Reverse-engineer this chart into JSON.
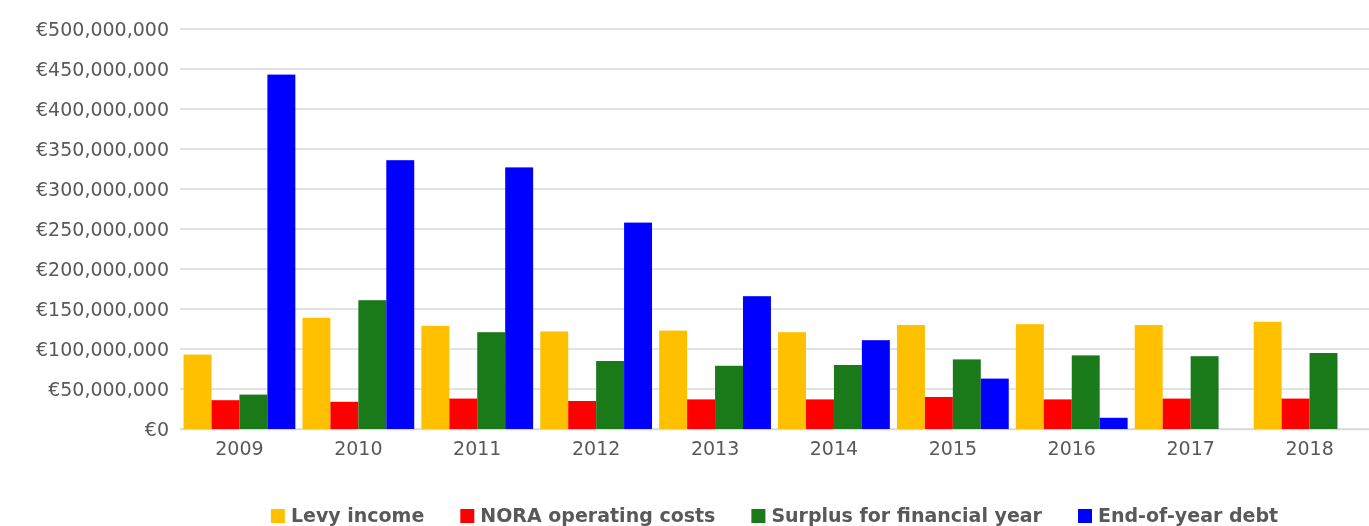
{
  "chart_data": {
    "type": "bar",
    "categories": [
      "2009",
      "2010",
      "2011",
      "2012",
      "2013",
      "2014",
      "2015",
      "2016",
      "2017",
      "2018"
    ],
    "series": [
      {
        "name": "Levy income",
        "color": "#ffc000",
        "values": [
          93000000,
          139000000,
          129000000,
          122000000,
          123000000,
          121000000,
          130000000,
          131000000,
          130000000,
          134000000
        ]
      },
      {
        "name": "NORA operating costs",
        "color": "#ff0000",
        "values": [
          36000000,
          34000000,
          38000000,
          35000000,
          37000000,
          37000000,
          40000000,
          37000000,
          38000000,
          38000000
        ]
      },
      {
        "name": "Surplus for financial year",
        "color": "#1a7a1a",
        "values": [
          43000000,
          161000000,
          121000000,
          85000000,
          79000000,
          80000000,
          87000000,
          92000000,
          91000000,
          95000000
        ]
      },
      {
        "name": "End-of-year debt",
        "color": "#0000ff",
        "values": [
          443000000,
          336000000,
          327000000,
          258000000,
          166000000,
          111000000,
          63000000,
          14000000,
          null,
          null
        ]
      }
    ],
    "ylim": [
      0,
      500000000
    ],
    "yticks": [
      {
        "value": 0,
        "label": "€0"
      },
      {
        "value": 50000000,
        "label": "€50,000,000"
      },
      {
        "value": 100000000,
        "label": "€100,000,000"
      },
      {
        "value": 150000000,
        "label": "€150,000,000"
      },
      {
        "value": 200000000,
        "label": "€200,000,000"
      },
      {
        "value": 250000000,
        "label": "€250,000,000"
      },
      {
        "value": 300000000,
        "label": "€300,000,000"
      },
      {
        "value": 350000000,
        "label": "€350,000,000"
      },
      {
        "value": 400000000,
        "label": "€400,000,000"
      },
      {
        "value": 450000000,
        "label": "€450,000,000"
      },
      {
        "value": 500000000,
        "label": "€500,000,000"
      }
    ],
    "grid": "y",
    "legend": "bottom"
  }
}
